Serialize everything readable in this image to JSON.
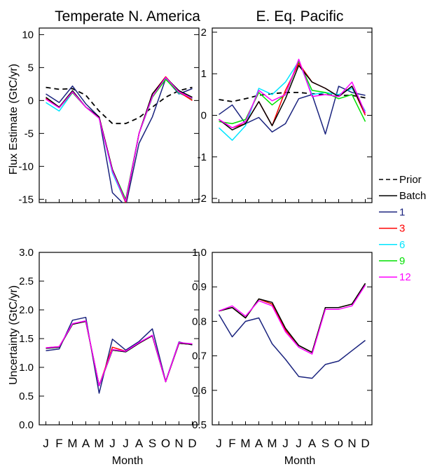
{
  "figure": {
    "ylabel_top": "Flux Estimate (GtC/yr)",
    "ylabel_bottom": "Uncertainty (GtC/yr)",
    "xlabel": "Month"
  },
  "legend": {
    "position": "right",
    "entries": [
      {
        "name": "Prior",
        "color": "#000000",
        "dash": true
      },
      {
        "name": "Batch",
        "color": "#000000",
        "dash": false
      },
      {
        "name": "1",
        "color": "#1a237e",
        "dash": false
      },
      {
        "name": "3",
        "color": "#ff0000",
        "dash": false
      },
      {
        "name": "6",
        "color": "#00e5ff",
        "dash": false
      },
      {
        "name": "9",
        "color": "#00e000",
        "dash": false
      },
      {
        "name": "12",
        "color": "#ff00ff",
        "dash": false
      }
    ]
  },
  "chart_data": [
    {
      "type": "line",
      "title": "Temperate N. America",
      "ylabel": "Flux Estimate (GtC/yr)",
      "xlabel": "",
      "categories": [
        "J",
        "F",
        "M",
        "A",
        "M",
        "J",
        "J",
        "A",
        "S",
        "O",
        "N",
        "D"
      ],
      "ylim": [
        -15.5,
        11
      ],
      "yticks": [
        10,
        5,
        0,
        -5,
        -10,
        -15
      ],
      "ytick_labels": [
        "10",
        "5",
        "0",
        "-5",
        "-10",
        "-15"
      ],
      "series": [
        {
          "name": "Prior",
          "values": [
            2.0,
            1.7,
            1.8,
            0.8,
            -1.6,
            -3.5,
            -3.5,
            -2.6,
            -1.0,
            0.5,
            1.5,
            2.0
          ]
        },
        {
          "name": "Batch",
          "values": [
            0.5,
            -1.0,
            1.5,
            -1.0,
            -2.5,
            -10.5,
            -15.3,
            -5.0,
            1.0,
            3.5,
            1.5,
            0.5
          ]
        },
        {
          "name": "1",
          "values": [
            1.0,
            -0.3,
            2.2,
            -0.5,
            -2.5,
            -14.0,
            -16.0,
            -6.5,
            -2.5,
            3.3,
            1.0,
            1.8
          ]
        },
        {
          "name": "3",
          "values": [
            0.3,
            -1.0,
            1.3,
            -1.0,
            -2.5,
            -10.5,
            -15.5,
            -5.0,
            1.0,
            3.6,
            1.3,
            0.0
          ]
        },
        {
          "name": "6",
          "values": [
            -0.3,
            -1.6,
            1.2,
            -1.0,
            -2.5,
            -11.0,
            -15.5,
            -5.0,
            0.5,
            3.4,
            1.1,
            0.3
          ]
        },
        {
          "name": "9",
          "values": [
            0.3,
            -1.1,
            1.2,
            -1.0,
            -2.7,
            -10.5,
            -15.0,
            -5.0,
            0.5,
            3.2,
            1.2,
            0.2
          ]
        },
        {
          "name": "12",
          "values": [
            0.2,
            -1.1,
            1.3,
            -1.0,
            -2.7,
            -10.7,
            -15.3,
            -5.0,
            0.6,
            3.5,
            1.3,
            0.3
          ]
        }
      ]
    },
    {
      "type": "line",
      "title": "E. Eq. Pacific",
      "ylabel": "",
      "xlabel": "",
      "categories": [
        "J",
        "F",
        "M",
        "A",
        "M",
        "J",
        "J",
        "A",
        "S",
        "O",
        "N",
        "D"
      ],
      "ylim": [
        -2.1,
        2.1
      ],
      "yticks": [
        2,
        1,
        0,
        -1,
        -2
      ],
      "ytick_labels": [
        "2",
        "1",
        "0",
        "-1",
        "-2"
      ],
      "series": [
        {
          "name": "Prior",
          "values": [
            0.38,
            0.33,
            0.4,
            0.48,
            0.52,
            0.55,
            0.55,
            0.52,
            0.5,
            0.48,
            0.48,
            0.42
          ]
        },
        {
          "name": "Batch",
          "values": [
            -0.1,
            -0.35,
            -0.2,
            0.33,
            -0.25,
            0.4,
            1.2,
            0.8,
            0.65,
            0.45,
            0.7,
            0.05
          ]
        },
        {
          "name": "1",
          "values": [
            0.02,
            0.25,
            -0.2,
            -0.05,
            -0.4,
            -0.2,
            0.4,
            0.5,
            -0.45,
            0.7,
            0.55,
            0.48
          ]
        },
        {
          "name": "3",
          "values": [
            -0.1,
            -0.3,
            -0.2,
            0.33,
            -0.25,
            0.6,
            1.25,
            0.8,
            0.65,
            0.45,
            0.7,
            0.0
          ]
        },
        {
          "name": "6",
          "values": [
            -0.3,
            -0.6,
            -0.25,
            0.65,
            0.5,
            0.8,
            1.3,
            0.5,
            0.55,
            0.5,
            0.65,
            0.1
          ]
        },
        {
          "name": "9",
          "values": [
            -0.15,
            -0.2,
            -0.1,
            0.55,
            0.25,
            0.5,
            1.3,
            0.6,
            0.55,
            0.4,
            0.5,
            -0.15
          ]
        },
        {
          "name": "12",
          "values": [
            -0.1,
            -0.3,
            -0.15,
            0.6,
            0.35,
            0.5,
            1.35,
            0.45,
            0.5,
            0.45,
            0.8,
            0.05
          ]
        }
      ]
    },
    {
      "type": "line",
      "title": "",
      "ylabel": "Uncertainty (GtC/yr)",
      "xlabel": "Month",
      "categories": [
        "J",
        "F",
        "M",
        "A",
        "M",
        "J",
        "J",
        "A",
        "S",
        "O",
        "N",
        "D"
      ],
      "ylim": [
        0.0,
        3.0
      ],
      "yticks": [
        3.0,
        2.5,
        2.0,
        1.5,
        1.0,
        0.5,
        0.0
      ],
      "ytick_labels": [
        "3.0",
        "2.5",
        "2.0",
        "1.5",
        "1.0",
        "0.5",
        "0.0"
      ],
      "series": [
        {
          "name": "Batch",
          "values": [
            1.33,
            1.35,
            1.75,
            1.8,
            0.68,
            1.3,
            1.27,
            1.42,
            1.55,
            0.75,
            1.42,
            1.4
          ]
        },
        {
          "name": "1",
          "values": [
            1.29,
            1.32,
            1.82,
            1.87,
            0.55,
            1.49,
            1.3,
            1.45,
            1.67,
            0.76,
            1.44,
            1.39
          ]
        },
        {
          "name": "3",
          "values": [
            1.34,
            1.36,
            1.75,
            1.8,
            0.68,
            1.35,
            1.28,
            1.42,
            1.55,
            0.75,
            1.42,
            1.4
          ]
        },
        {
          "name": "6",
          "values": [
            1.33,
            1.35,
            1.75,
            1.8,
            0.68,
            1.3,
            1.27,
            1.42,
            1.55,
            0.75,
            1.42,
            1.4
          ]
        },
        {
          "name": "9",
          "values": [
            1.33,
            1.35,
            1.75,
            1.8,
            0.68,
            1.3,
            1.27,
            1.42,
            1.55,
            0.75,
            1.42,
            1.4
          ]
        },
        {
          "name": "12",
          "values": [
            1.34,
            1.36,
            1.76,
            1.81,
            0.68,
            1.31,
            1.28,
            1.43,
            1.56,
            0.75,
            1.43,
            1.41
          ]
        }
      ]
    },
    {
      "type": "line",
      "title": "",
      "ylabel": "",
      "xlabel": "Month",
      "categories": [
        "J",
        "F",
        "M",
        "A",
        "M",
        "J",
        "J",
        "A",
        "S",
        "O",
        "N",
        "D"
      ],
      "ylim": [
        0.5,
        1.0
      ],
      "yticks": [
        1.0,
        0.9,
        0.8,
        0.7,
        0.6,
        0.5
      ],
      "ytick_labels": [
        "1.0",
        "0.9",
        "0.8",
        "0.7",
        "0.6",
        "0.5"
      ],
      "series": [
        {
          "name": "Batch",
          "values": [
            0.83,
            0.84,
            0.81,
            0.865,
            0.855,
            0.78,
            0.73,
            0.71,
            0.84,
            0.84,
            0.85,
            0.91
          ]
        },
        {
          "name": "1",
          "values": [
            0.82,
            0.755,
            0.8,
            0.81,
            0.735,
            0.69,
            0.64,
            0.635,
            0.675,
            0.685,
            0.715,
            0.745
          ]
        },
        {
          "name": "3",
          "values": [
            0.83,
            0.84,
            0.81,
            0.865,
            0.85,
            0.775,
            0.73,
            0.71,
            0.84,
            0.84,
            0.85,
            0.91
          ]
        },
        {
          "name": "6",
          "values": [
            0.83,
            0.84,
            0.81,
            0.865,
            0.85,
            0.775,
            0.73,
            0.71,
            0.84,
            0.84,
            0.85,
            0.91
          ]
        },
        {
          "name": "9",
          "values": [
            0.83,
            0.84,
            0.81,
            0.865,
            0.85,
            0.775,
            0.73,
            0.71,
            0.84,
            0.84,
            0.85,
            0.91
          ]
        },
        {
          "name": "12",
          "values": [
            0.83,
            0.845,
            0.815,
            0.86,
            0.845,
            0.77,
            0.725,
            0.705,
            0.835,
            0.835,
            0.845,
            0.905
          ]
        }
      ]
    }
  ]
}
